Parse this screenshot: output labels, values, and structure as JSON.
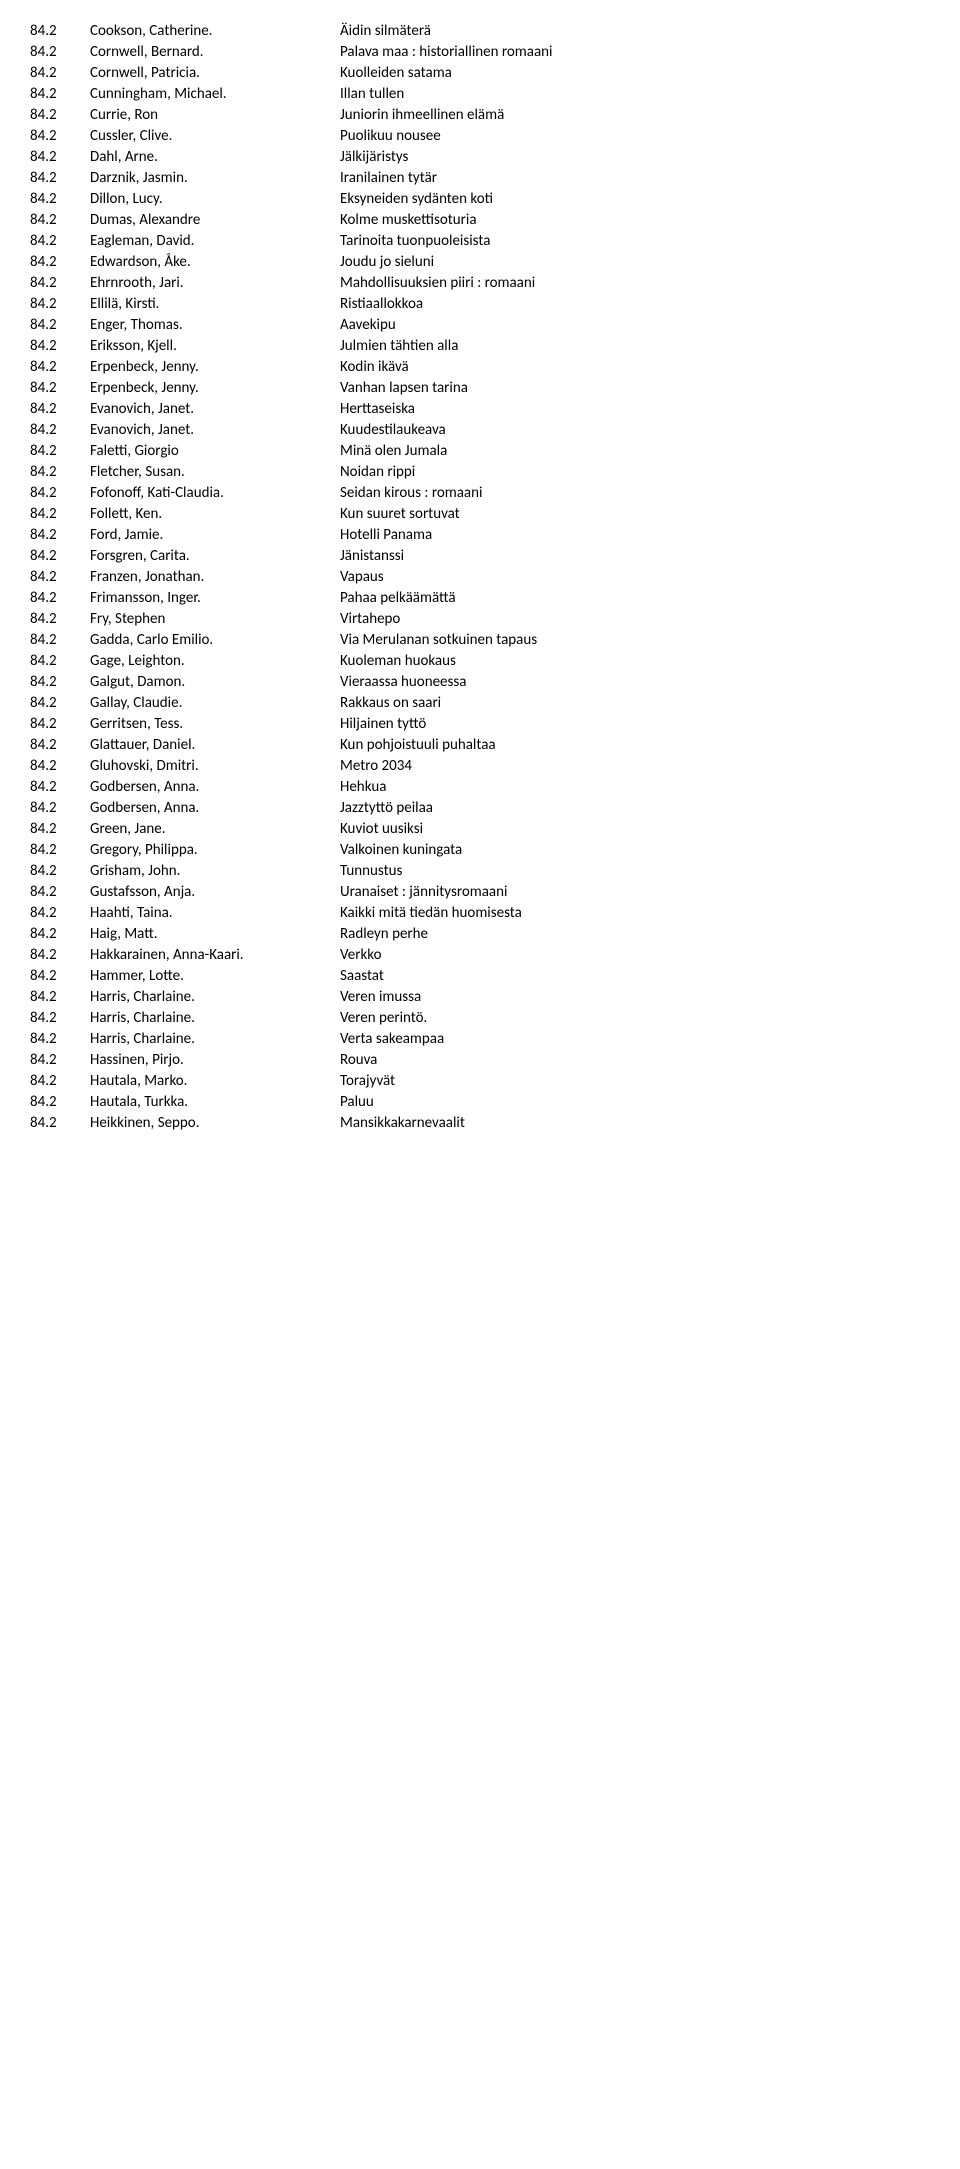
{
  "rows": [
    {
      "code": "84.2",
      "author": "Cookson, Catherine.",
      "title": "Äidin silmäterä"
    },
    {
      "code": "84.2",
      "author": "Cornwell, Bernard.",
      "title": "Palava maa : historiallinen romaani"
    },
    {
      "code": "84.2",
      "author": "Cornwell, Patricia.",
      "title": "Kuolleiden satama"
    },
    {
      "code": "84.2",
      "author": "Cunningham, Michael.",
      "title": "Illan tullen"
    },
    {
      "code": "84.2",
      "author": "Currie, Ron",
      "title": "Juniorin ihmeellinen elämä"
    },
    {
      "code": "84.2",
      "author": "Cussler, Clive.",
      "title": "Puolikuu nousee"
    },
    {
      "code": "84.2",
      "author": "Dahl, Arne.",
      "title": "Jälkijäristys"
    },
    {
      "code": "84.2",
      "author": "Darznik, Jasmin.",
      "title": "Iranilainen tytär"
    },
    {
      "code": "84.2",
      "author": "Dillon, Lucy.",
      "title": "Eksyneiden sydänten koti"
    },
    {
      "code": "84.2",
      "author": "Dumas, Alexandre",
      "title": "Kolme muskettisoturia"
    },
    {
      "code": "84.2",
      "author": "Eagleman, David.",
      "title": "Tarinoita tuonpuoleisista"
    },
    {
      "code": "84.2",
      "author": "Edwardson, Åke.",
      "title": "Joudu jo sieluni"
    },
    {
      "code": "84.2",
      "author": "Ehrnrooth, Jari.",
      "title": "Mahdollisuuksien piiri : romaani"
    },
    {
      "code": "84.2",
      "author": "Ellilä, Kirsti.",
      "title": "Ristiaallokkoa"
    },
    {
      "code": "84.2",
      "author": "Enger, Thomas.",
      "title": "Aavekipu"
    },
    {
      "code": "84.2",
      "author": "Eriksson, Kjell.",
      "title": "Julmien tähtien alla"
    },
    {
      "code": "84.2",
      "author": "Erpenbeck, Jenny.",
      "title": "Kodin ikävä"
    },
    {
      "code": "84.2",
      "author": "Erpenbeck, Jenny.",
      "title": "Vanhan lapsen tarina"
    },
    {
      "code": "84.2",
      "author": "Evanovich, Janet.",
      "title": "Herttaseiska"
    },
    {
      "code": "84.2",
      "author": "Evanovich, Janet.",
      "title": "Kuudestilaukeava"
    },
    {
      "code": "84.2",
      "author": "Faletti, Giorgio",
      "title": "Minä olen Jumala"
    },
    {
      "code": "84.2",
      "author": "Fletcher, Susan.",
      "title": "Noidan rippi"
    },
    {
      "code": "84.2",
      "author": "Fofonoff, Kati-Claudia.",
      "title": "Seidan kirous : romaani"
    },
    {
      "code": "84.2",
      "author": "Follett, Ken.",
      "title": "Kun suuret sortuvat"
    },
    {
      "code": "84.2",
      "author": "Ford, Jamie.",
      "title": "Hotelli Panama"
    },
    {
      "code": "84.2",
      "author": "Forsgren, Carita.",
      "title": "Jänistanssi"
    },
    {
      "code": "84.2",
      "author": "Franzen, Jonathan.",
      "title": "Vapaus"
    },
    {
      "code": "84.2",
      "author": "Frimansson, Inger.",
      "title": "Pahaa pelkäämättä"
    },
    {
      "code": "84.2",
      "author": "Fry, Stephen",
      "title": "Virtahepo"
    },
    {
      "code": "84.2",
      "author": "Gadda, Carlo Emilio.",
      "title": "Via Merulanan sotkuinen tapaus"
    },
    {
      "code": "84.2",
      "author": "Gage, Leighton.",
      "title": "Kuoleman huokaus"
    },
    {
      "code": "84.2",
      "author": "Galgut, Damon.",
      "title": "Vieraassa huoneessa"
    },
    {
      "code": "84.2",
      "author": "Gallay, Claudie.",
      "title": "Rakkaus on saari"
    },
    {
      "code": "84.2",
      "author": "Gerritsen, Tess.",
      "title": "Hiljainen tyttö"
    },
    {
      "code": "84.2",
      "author": "Glattauer, Daniel.",
      "title": "Kun pohjoistuuli puhaltaa"
    },
    {
      "code": "84.2",
      "author": "Gluhovski, Dmitri.",
      "title": "Metro 2034"
    },
    {
      "code": "84.2",
      "author": "Godbersen, Anna.",
      "title": "Hehkua"
    },
    {
      "code": "84.2",
      "author": "Godbersen, Anna.",
      "title": "Jazztyttö peilaa"
    },
    {
      "code": "84.2",
      "author": "Green, Jane.",
      "title": "Kuviot uusiksi"
    },
    {
      "code": "84.2",
      "author": "Gregory, Philippa.",
      "title": "Valkoinen kuningata"
    },
    {
      "code": "84.2",
      "author": "Grisham, John.",
      "title": "Tunnustus"
    },
    {
      "code": "84.2",
      "author": "Gustafsson, Anja.",
      "title": "Uranaiset : jännitysromaani"
    },
    {
      "code": "84.2",
      "author": "Haahti, Taina.",
      "title": "Kaikki mitä tiedän huomisesta"
    },
    {
      "code": "84.2",
      "author": "Haig, Matt.",
      "title": "Radleyn perhe"
    },
    {
      "code": "84.2",
      "author": "Hakkarainen, Anna-Kaari.",
      "title": "Verkko"
    },
    {
      "code": "84.2",
      "author": "Hammer, Lotte.",
      "title": "Saastat"
    },
    {
      "code": "84.2",
      "author": "Harris, Charlaine.",
      "title": "Veren imussa"
    },
    {
      "code": "84.2",
      "author": "Harris, Charlaine.",
      "title": "Veren perintö."
    },
    {
      "code": "84.2",
      "author": "Harris, Charlaine.",
      "title": "Verta sakeampaa"
    },
    {
      "code": "84.2",
      "author": "Hassinen, Pirjo.",
      "title": "Rouva"
    },
    {
      "code": "84.2",
      "author": "Hautala, Marko.",
      "title": "Torajyvät"
    },
    {
      "code": "84.2",
      "author": "Hautala, Turkka.",
      "title": "Paluu"
    },
    {
      "code": "84.2",
      "author": "Heikkinen, Seppo.",
      "title": "Mansikkakarnevaalit"
    }
  ]
}
